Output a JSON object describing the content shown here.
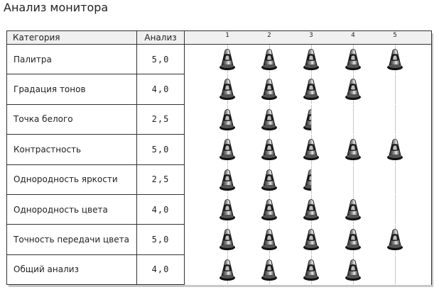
{
  "title": "Анализ монитора",
  "headers": {
    "category": "Категория",
    "score": "Анализ"
  },
  "scale": [
    "1",
    "2",
    "3",
    "4",
    "5"
  ],
  "rows": [
    {
      "category": "Палитра",
      "score_text": "5,0",
      "score": 5.0
    },
    {
      "category": "Градация тонов",
      "score_text": "4,0",
      "score": 4.0
    },
    {
      "category": "Точка белого",
      "score_text": "2,5",
      "score": 2.5
    },
    {
      "category": "Контрастность",
      "score_text": "5,0",
      "score": 5.0
    },
    {
      "category": "Однородность яркости",
      "score_text": "2,5",
      "score": 2.5
    },
    {
      "category": "Однородность цвета",
      "score_text": "4,0",
      "score": 4.0
    },
    {
      "category": "Точность передачи цвета",
      "score_text": "5,0",
      "score": 5.0
    },
    {
      "category": "Общий анализ",
      "score_text": "4,0",
      "score": 4.0
    }
  ],
  "icon": "traffic-cone-icon",
  "colors": {
    "grid": "#c8c8c8",
    "border": "#333333",
    "header_bg": "#f0f0f0"
  }
}
